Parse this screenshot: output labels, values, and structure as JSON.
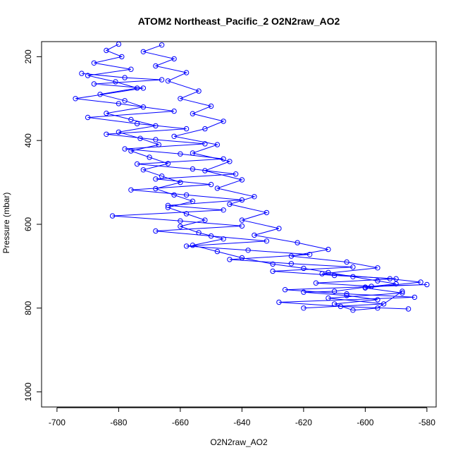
{
  "chart_data": {
    "type": "scatter",
    "title": "ATOM2 Northeast_Pacific_2 O2N2raw_AO2",
    "xlabel": "O2N2raw_AO2",
    "ylabel": "Pressure (mbar)",
    "xlim": [
      -705,
      -577
    ],
    "ylim": [
      1036,
      164
    ],
    "y_reversed": true,
    "x_ticks": [
      -700,
      -680,
      -660,
      -640,
      -620,
      -600,
      -580
    ],
    "y_ticks": [
      200,
      400,
      600,
      800,
      1000
    ],
    "series": [
      {
        "color": "#0000ff",
        "marker": "open-circle",
        "connected": true,
        "points": [
          [
            -680,
            170
          ],
          [
            -684,
            185
          ],
          [
            -679,
            200
          ],
          [
            -688,
            215
          ],
          [
            -676,
            230
          ],
          [
            -690,
            245
          ],
          [
            -681,
            260
          ],
          [
            -674,
            275
          ],
          [
            -686,
            290
          ],
          [
            -678,
            305
          ],
          [
            -672,
            320
          ],
          [
            -684,
            335
          ],
          [
            -676,
            350
          ],
          [
            -668,
            365
          ],
          [
            -680,
            380
          ],
          [
            -673,
            395
          ],
          [
            -667,
            410
          ],
          [
            -676,
            425
          ],
          [
            -670,
            440
          ],
          [
            -664,
            455
          ],
          [
            -672,
            470
          ],
          [
            -666,
            485
          ],
          [
            -660,
            500
          ],
          [
            -668,
            515
          ],
          [
            -662,
            530
          ],
          [
            -656,
            545
          ],
          [
            -664,
            560
          ],
          [
            -658,
            575
          ],
          [
            -652,
            590
          ],
          [
            -660,
            605
          ],
          [
            -654,
            620
          ],
          [
            -646,
            635
          ],
          [
            -656,
            650
          ],
          [
            -648,
            665
          ],
          [
            -640,
            680
          ],
          [
            -630,
            695
          ],
          [
            -620,
            705
          ],
          [
            -612,
            715
          ],
          [
            -604,
            725
          ],
          [
            -596,
            735
          ],
          [
            -590,
            742
          ],
          [
            -600,
            750
          ],
          [
            -610,
            760
          ],
          [
            -620,
            762
          ],
          [
            -606,
            770
          ],
          [
            -596,
            780
          ],
          [
            -610,
            790
          ],
          [
            -604,
            805
          ],
          [
            -596,
            800
          ],
          [
            -588,
            760
          ]
        ]
      },
      {
        "color": "#0000ff",
        "marker": "open-circle",
        "connected": true,
        "points": [
          [
            -692,
            240
          ],
          [
            -678,
            250
          ],
          [
            -666,
            255
          ],
          [
            -688,
            265
          ],
          [
            -672,
            275
          ],
          [
            -694,
            300
          ],
          [
            -680,
            312
          ],
          [
            -662,
            330
          ],
          [
            -690,
            345
          ],
          [
            -674,
            360
          ],
          [
            -658,
            372
          ],
          [
            -684,
            385
          ],
          [
            -668,
            398
          ],
          [
            -652,
            408
          ],
          [
            -678,
            420
          ],
          [
            -660,
            432
          ],
          [
            -646,
            444
          ],
          [
            -674,
            456
          ],
          [
            -656,
            468
          ],
          [
            -642,
            480
          ],
          [
            -668,
            492
          ],
          [
            -650,
            505
          ],
          [
            -676,
            518
          ],
          [
            -658,
            530
          ],
          [
            -640,
            542
          ],
          [
            -664,
            555
          ],
          [
            -646,
            566
          ],
          [
            -682,
            580
          ],
          [
            -660,
            592
          ],
          [
            -640,
            604
          ],
          [
            -668,
            616
          ],
          [
            -650,
            628
          ],
          [
            -632,
            640
          ],
          [
            -658,
            652
          ],
          [
            -638,
            662
          ],
          [
            -618,
            672
          ],
          [
            -644,
            684
          ],
          [
            -624,
            694
          ],
          [
            -604,
            702
          ],
          [
            -630,
            712
          ],
          [
            -610,
            722
          ],
          [
            -590,
            730
          ],
          [
            -616,
            740
          ],
          [
            -598,
            748
          ],
          [
            -580,
            744
          ],
          [
            -626,
            756
          ],
          [
            -606,
            766
          ],
          [
            -584,
            774
          ],
          [
            -628,
            786
          ],
          [
            -608,
            796
          ],
          [
            -586,
            802
          ]
        ]
      },
      {
        "color": "#0000ff",
        "marker": "open-circle",
        "connected": true,
        "points": [
          [
            -666,
            172
          ],
          [
            -672,
            188
          ],
          [
            -662,
            205
          ],
          [
            -668,
            222
          ],
          [
            -658,
            238
          ],
          [
            -664,
            258
          ],
          [
            -654,
            282
          ],
          [
            -660,
            300
          ],
          [
            -650,
            318
          ],
          [
            -656,
            336
          ],
          [
            -646,
            354
          ],
          [
            -652,
            372
          ],
          [
            -662,
            390
          ],
          [
            -648,
            410
          ],
          [
            -656,
            430
          ],
          [
            -644,
            450
          ],
          [
            -652,
            472
          ],
          [
            -640,
            494
          ],
          [
            -648,
            514
          ],
          [
            -636,
            534
          ],
          [
            -644,
            552
          ],
          [
            -632,
            572
          ],
          [
            -640,
            590
          ],
          [
            -628,
            610
          ],
          [
            -636,
            626
          ],
          [
            -622,
            644
          ],
          [
            -612,
            660
          ],
          [
            -624,
            676
          ],
          [
            -606,
            690
          ],
          [
            -596,
            704
          ],
          [
            -614,
            718
          ],
          [
            -592,
            730
          ],
          [
            -582,
            738
          ],
          [
            -600,
            752
          ],
          [
            -588,
            764
          ],
          [
            -612,
            776
          ],
          [
            -594,
            790
          ],
          [
            -620,
            800
          ]
        ]
      }
    ]
  }
}
